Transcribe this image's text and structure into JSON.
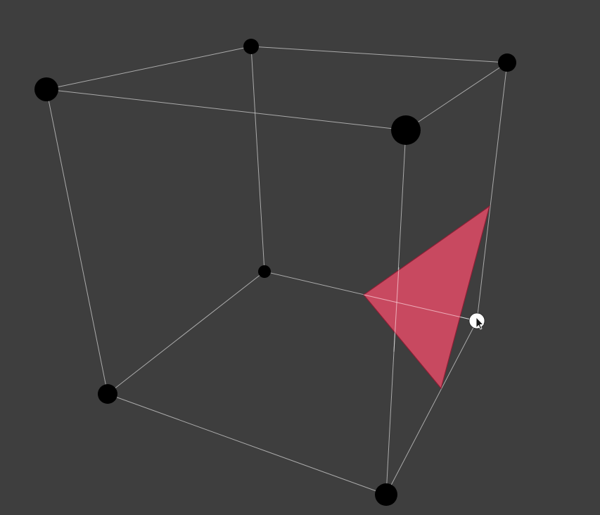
{
  "scene": {
    "background_color": "#3e3e3e",
    "edge_color": "#cfcfcf",
    "vertex_color": "#000000",
    "triangle_fill": "#e04b66",
    "triangle_stroke": "#8a1f35",
    "cursor_handle_color": "#ffffff",
    "cube_vertex_count": 8,
    "cube_edge_count": 12,
    "triangle_count": 1,
    "icons": {
      "vertex": "vertex-dot-icon",
      "handle": "drag-handle-icon",
      "pointer": "mouse-pointer-icon"
    }
  }
}
